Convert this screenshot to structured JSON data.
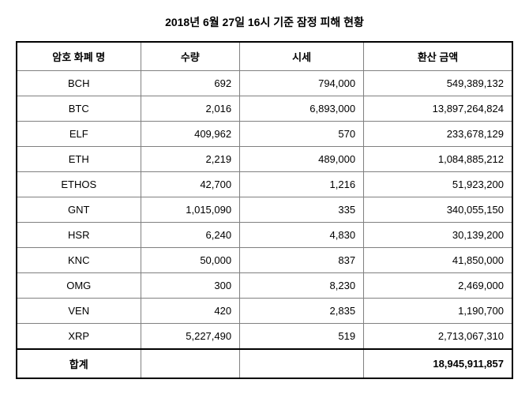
{
  "title": "2018년 6월 27일 16시 기준 잠정 피해 현황",
  "table": {
    "headers": {
      "name": "암호 화폐 명",
      "quantity": "수량",
      "price": "시세",
      "amount": "환산 금액"
    },
    "rows": [
      {
        "name": "BCH",
        "quantity": "692",
        "price": "794,000",
        "amount": "549,389,132"
      },
      {
        "name": "BTC",
        "quantity": "2,016",
        "price": "6,893,000",
        "amount": "13,897,264,824"
      },
      {
        "name": "ELF",
        "quantity": "409,962",
        "price": "570",
        "amount": "233,678,129"
      },
      {
        "name": "ETH",
        "quantity": "2,219",
        "price": "489,000",
        "amount": "1,084,885,212"
      },
      {
        "name": "ETHOS",
        "quantity": "42,700",
        "price": "1,216",
        "amount": "51,923,200"
      },
      {
        "name": "GNT",
        "quantity": "1,015,090",
        "price": "335",
        "amount": "340,055,150"
      },
      {
        "name": "HSR",
        "quantity": "6,240",
        "price": "4,830",
        "amount": "30,139,200"
      },
      {
        "name": "KNC",
        "quantity": "50,000",
        "price": "837",
        "amount": "41,850,000"
      },
      {
        "name": "OMG",
        "quantity": "300",
        "price": "8,230",
        "amount": "2,469,000"
      },
      {
        "name": "VEN",
        "quantity": "420",
        "price": "2,835",
        "amount": "1,190,700"
      },
      {
        "name": "XRP",
        "quantity": "5,227,490",
        "price": "519",
        "amount": "2,713,067,310"
      }
    ],
    "total": {
      "label": "합계",
      "amount": "18,945,911,857"
    }
  },
  "style": {
    "background_color": "#ffffff",
    "border_color_outer": "#000000",
    "border_color_inner": "#808080",
    "text_color": "#000000",
    "title_fontsize": 14,
    "cell_fontsize": 13,
    "column_widths": [
      "25%",
      "20%",
      "25%",
      "30%"
    ]
  }
}
